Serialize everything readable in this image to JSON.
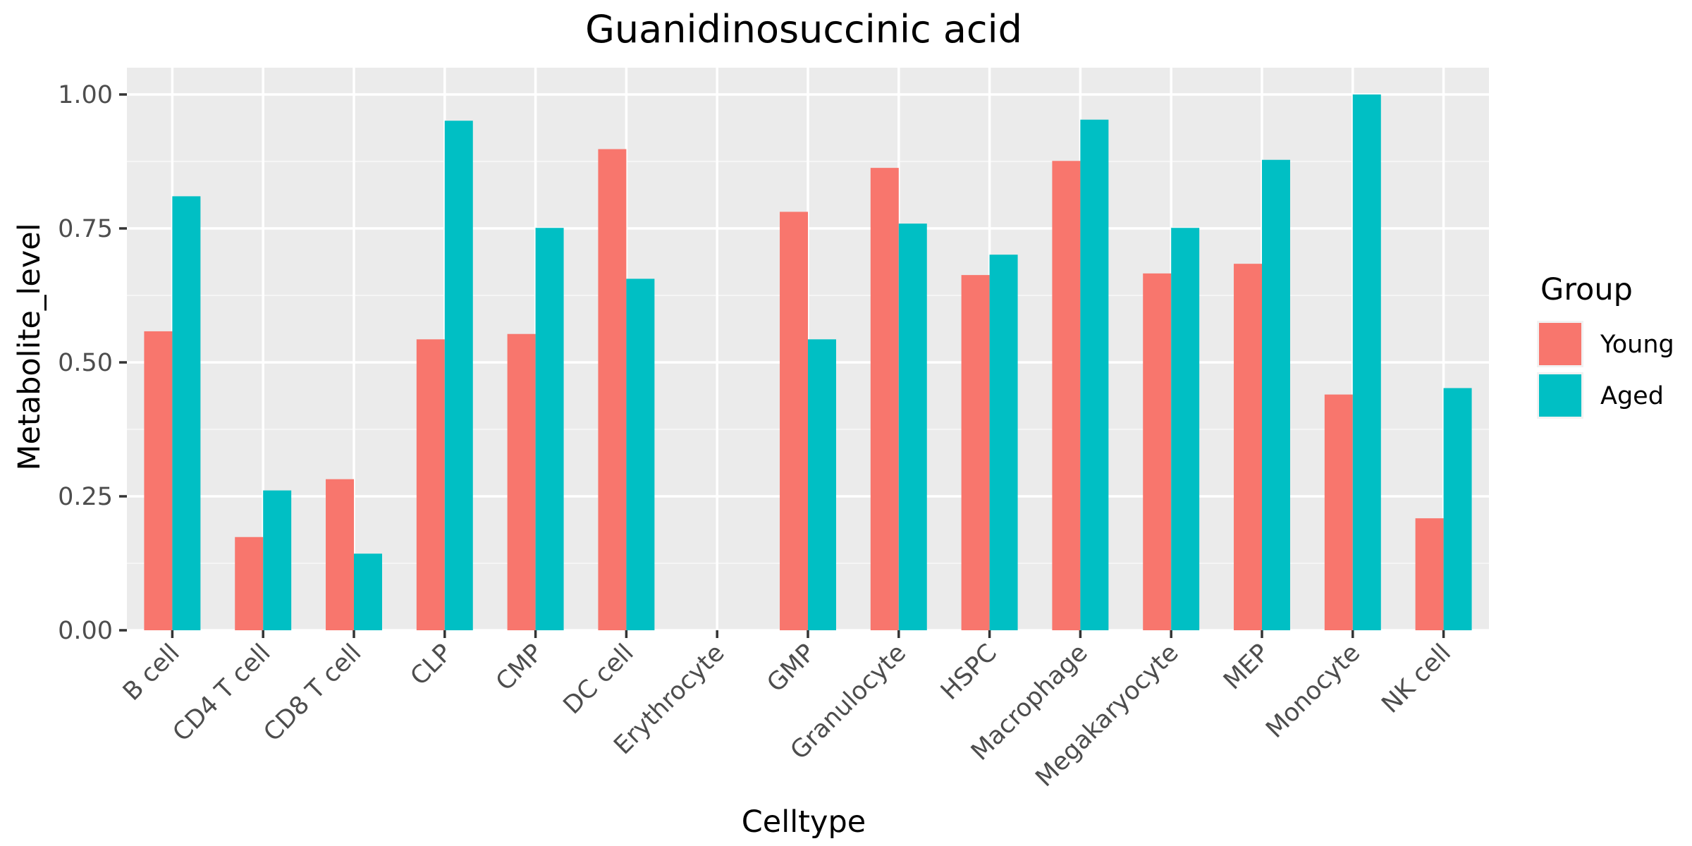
{
  "chart_data": {
    "type": "bar",
    "title": "Guanidinosuccinic acid",
    "xlabel": "Celltype",
    "ylabel": "Metabolite_level",
    "ylim": [
      0,
      1.05
    ],
    "yticks": [
      "0.00",
      "0.25",
      "0.50",
      "0.75",
      "1.00"
    ],
    "ytick_values": [
      0,
      0.25,
      0.5,
      0.75,
      1.0
    ],
    "grid": true,
    "legend_position": "right",
    "legend_title": "Group",
    "categories": [
      "B cell",
      "CD4 T cell",
      "CD8 T cell",
      "CLP",
      "CMP",
      "DC cell",
      "Erythrocyte",
      "GMP",
      "Granulocyte",
      "HSPC",
      "Macrophage",
      "Megakaryocyte",
      "MEP",
      "Monocyte",
      "NK cell"
    ],
    "series": [
      {
        "name": "Young",
        "color": "#F8766D",
        "values": [
          0.558,
          0.174,
          0.282,
          0.543,
          0.553,
          0.898,
          null,
          0.781,
          0.863,
          0.663,
          0.876,
          0.666,
          0.684,
          0.44,
          0.209
        ]
      },
      {
        "name": "Aged",
        "color": "#00BFC4",
        "values": [
          0.81,
          0.261,
          0.143,
          0.951,
          0.751,
          0.656,
          null,
          0.543,
          0.759,
          0.701,
          0.953,
          0.751,
          0.878,
          1.0,
          0.452
        ]
      }
    ]
  },
  "colors": {
    "panel_background": "#EBEBEB",
    "grid_major": "#FFFFFF",
    "grid_minor": "#F5F5F5"
  }
}
